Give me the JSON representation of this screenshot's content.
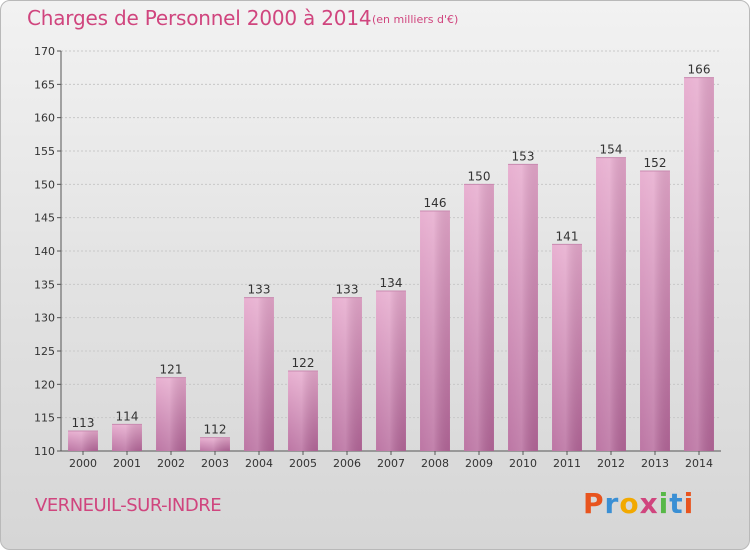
{
  "header": {
    "title": "Charges de Personnel 2000 à 2014",
    "subtitle": "(en milliers d'€)"
  },
  "footer": {
    "commune": "VERNEUIL-SUR-INDRE",
    "brand": "Proxiti",
    "brand_colors": [
      "#e8541e",
      "#3a8fd4",
      "#f2a900",
      "#d0457e",
      "#57b847",
      "#3a8fd4",
      "#e8541e"
    ]
  },
  "colors": {
    "title": "#d0457e",
    "bar_top": "#e6a8cc",
    "bar_bottom": "#b5679a",
    "grid": "#c8c8c8",
    "axis": "#555555"
  },
  "chart_data": {
    "type": "bar",
    "categories": [
      "2000",
      "2001",
      "2002",
      "2003",
      "2004",
      "2005",
      "2006",
      "2007",
      "2008",
      "2009",
      "2010",
      "2011",
      "2012",
      "2013",
      "2014"
    ],
    "values": [
      113,
      114,
      121,
      112,
      133,
      122,
      133,
      134,
      146,
      150,
      153,
      141,
      154,
      152,
      166
    ],
    "ylim": [
      110,
      170
    ],
    "yticks": [
      110,
      115,
      120,
      125,
      130,
      135,
      140,
      145,
      150,
      155,
      160,
      165,
      170
    ],
    "grid": true,
    "data_labels": true
  }
}
